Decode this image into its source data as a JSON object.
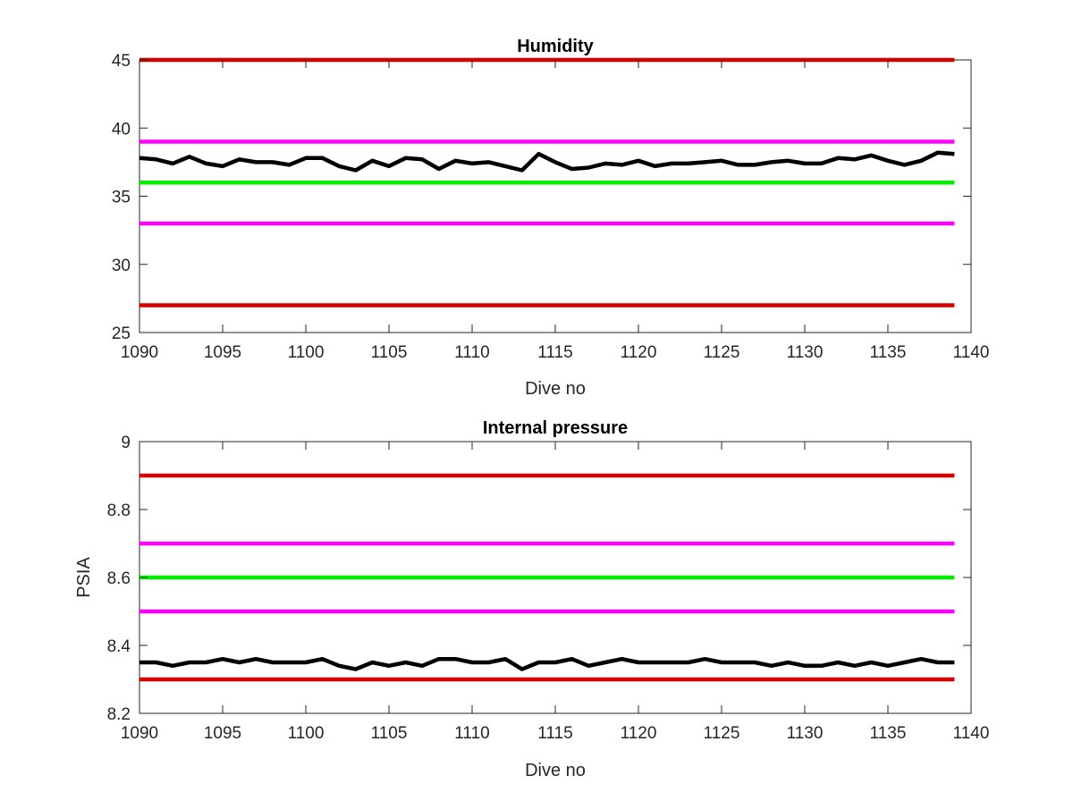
{
  "chart_data": [
    {
      "type": "line",
      "title": "Humidity",
      "xlabel": "Dive no",
      "ylabel": "",
      "xlim": [
        1090,
        1140
      ],
      "ylim": [
        25,
        45
      ],
      "xticks": [
        1090,
        1095,
        1100,
        1105,
        1110,
        1115,
        1120,
        1125,
        1130,
        1135,
        1140
      ],
      "yticks": [
        25,
        30,
        35,
        40,
        45
      ],
      "grid": false,
      "reference_lines": [
        {
          "y": 45,
          "color": "#d40000"
        },
        {
          "y": 39,
          "color": "#ff00ff"
        },
        {
          "y": 36,
          "color": "#00ee00"
        },
        {
          "y": 33,
          "color": "#ff00ff"
        },
        {
          "y": 27,
          "color": "#d40000"
        }
      ],
      "series": [
        {
          "color": "#000000",
          "x": [
            1090,
            1091,
            1092,
            1093,
            1094,
            1095,
            1096,
            1097,
            1098,
            1099,
            1100,
            1101,
            1102,
            1103,
            1104,
            1105,
            1106,
            1107,
            1108,
            1109,
            1110,
            1111,
            1112,
            1113,
            1114,
            1115,
            1116,
            1117,
            1118,
            1119,
            1120,
            1121,
            1122,
            1123,
            1124,
            1125,
            1126,
            1127,
            1128,
            1129,
            1130,
            1131,
            1132,
            1133,
            1134,
            1135,
            1136,
            1137,
            1138,
            1139
          ],
          "values": [
            37.8,
            37.7,
            37.4,
            37.9,
            37.4,
            37.2,
            37.7,
            37.5,
            37.5,
            37.3,
            37.8,
            37.8,
            37.2,
            36.9,
            37.6,
            37.2,
            37.8,
            37.7,
            37.0,
            37.6,
            37.4,
            37.5,
            37.2,
            36.9,
            38.1,
            37.5,
            37.0,
            37.1,
            37.4,
            37.3,
            37.6,
            37.2,
            37.4,
            37.4,
            37.5,
            37.6,
            37.3,
            37.3,
            37.5,
            37.6,
            37.4,
            37.4,
            37.8,
            37.7,
            38.0,
            37.6,
            37.3,
            37.6,
            38.2,
            38.1
          ]
        }
      ]
    },
    {
      "type": "line",
      "title": "Internal pressure",
      "xlabel": "Dive no",
      "ylabel": "PSIA",
      "xlim": [
        1090,
        1140
      ],
      "ylim": [
        8.2,
        9
      ],
      "xticks": [
        1090,
        1095,
        1100,
        1105,
        1110,
        1115,
        1120,
        1125,
        1130,
        1135,
        1140
      ],
      "yticks": [
        8.2,
        8.4,
        8.6,
        8.8,
        9
      ],
      "grid": false,
      "reference_lines": [
        {
          "y": 8.9,
          "color": "#d40000"
        },
        {
          "y": 8.7,
          "color": "#ff00ff"
        },
        {
          "y": 8.6,
          "color": "#00ee00"
        },
        {
          "y": 8.5,
          "color": "#ff00ff"
        },
        {
          "y": 8.3,
          "color": "#d40000"
        }
      ],
      "series": [
        {
          "color": "#000000",
          "x": [
            1090,
            1091,
            1092,
            1093,
            1094,
            1095,
            1096,
            1097,
            1098,
            1099,
            1100,
            1101,
            1102,
            1103,
            1104,
            1105,
            1106,
            1107,
            1108,
            1109,
            1110,
            1111,
            1112,
            1113,
            1114,
            1115,
            1116,
            1117,
            1118,
            1119,
            1120,
            1121,
            1122,
            1123,
            1124,
            1125,
            1126,
            1127,
            1128,
            1129,
            1130,
            1131,
            1132,
            1133,
            1134,
            1135,
            1136,
            1137,
            1138,
            1139
          ],
          "values": [
            8.35,
            8.35,
            8.34,
            8.35,
            8.35,
            8.36,
            8.35,
            8.36,
            8.35,
            8.35,
            8.35,
            8.36,
            8.34,
            8.33,
            8.35,
            8.34,
            8.35,
            8.34,
            8.36,
            8.36,
            8.35,
            8.35,
            8.36,
            8.33,
            8.35,
            8.35,
            8.36,
            8.34,
            8.35,
            8.36,
            8.35,
            8.35,
            8.35,
            8.35,
            8.36,
            8.35,
            8.35,
            8.35,
            8.34,
            8.35,
            8.34,
            8.34,
            8.35,
            8.34,
            8.35,
            8.34,
            8.35,
            8.36,
            8.35,
            8.35
          ]
        }
      ]
    }
  ]
}
